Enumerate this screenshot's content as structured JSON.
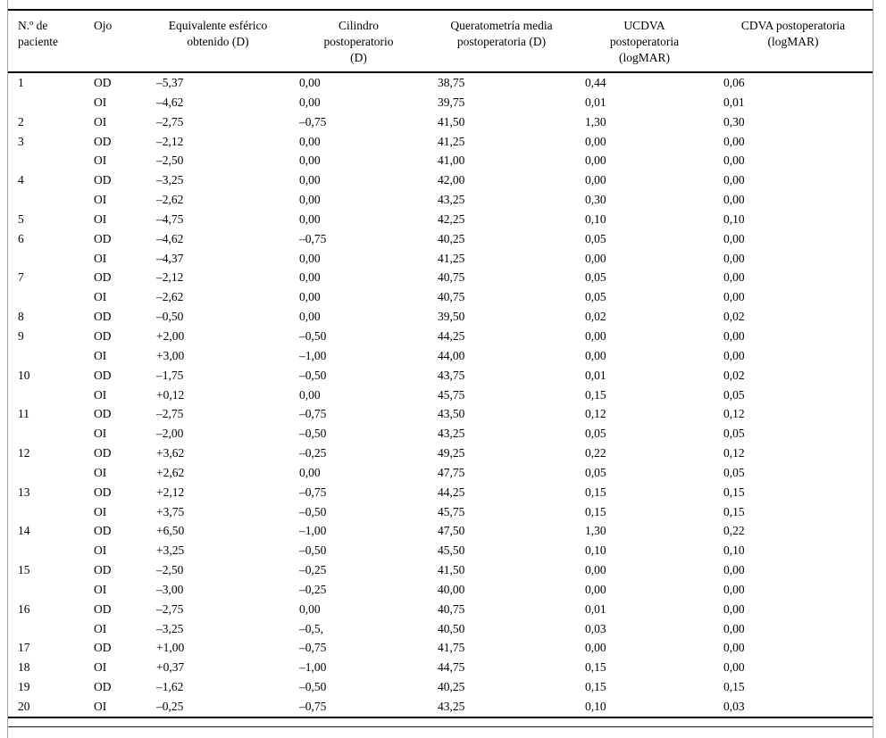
{
  "colors": {
    "rule": "#000000",
    "frame_border": "#a6a6a6",
    "background": "#ffffff",
    "text": "#000000"
  },
  "table": {
    "columns": [
      {
        "id": "patient",
        "label": "N.º de\npaciente"
      },
      {
        "id": "eye",
        "label": "Ojo"
      },
      {
        "id": "spherical-equivalent",
        "label": "Equivalente esférico\nobtenido (D)"
      },
      {
        "id": "cylinder",
        "label": "Cilindro\npostoperatorio\n(D)"
      },
      {
        "id": "keratometry",
        "label": "Queratometría media\npostoperatoria (D)"
      },
      {
        "id": "ucdva",
        "label": "UCDVA\npostoperatoria\n(logMAR)"
      },
      {
        "id": "cdva",
        "label": "CDVA postoperatoria\n(logMAR)"
      }
    ],
    "rows": [
      [
        "1",
        "OD",
        "–5,37",
        "0,00",
        "38,75",
        "0,44",
        "0,06"
      ],
      [
        "",
        "OI",
        "–4,62",
        "0,00",
        "39,75",
        "0,01",
        "0,01"
      ],
      [
        "2",
        "OI",
        "–2,75",
        "–0,75",
        "41,50",
        "1,30",
        "0,30"
      ],
      [
        "3",
        "OD",
        "–2,12",
        "0,00",
        "41,25",
        "0,00",
        "0,00"
      ],
      [
        "",
        "OI",
        "–2,50",
        "0,00",
        "41,00",
        "0,00",
        "0,00"
      ],
      [
        "4",
        "OD",
        "–3,25",
        "0,00",
        "42,00",
        "0,00",
        "0,00"
      ],
      [
        "",
        "OI",
        "–2,62",
        "0,00",
        "43,25",
        "0,30",
        "0,00"
      ],
      [
        "5",
        "OI",
        "–4,75",
        "0,00",
        "42,25",
        "0,10",
        "0,10"
      ],
      [
        "6",
        "OD",
        "–4,62",
        "–0,75",
        "40,25",
        "0,05",
        "0,00"
      ],
      [
        "",
        "OI",
        "–4,37",
        "0,00",
        "41,25",
        "0,00",
        "0,00"
      ],
      [
        "7",
        "OD",
        "–2,12",
        "0,00",
        "40,75",
        "0,05",
        "0,00"
      ],
      [
        "",
        "OI",
        "–2,62",
        "0,00",
        "40,75",
        "0,05",
        "0,00"
      ],
      [
        "8",
        "OD",
        "–0,50",
        "0,00",
        "39,50",
        "0,02",
        "0,02"
      ],
      [
        "9",
        "OD",
        "+2,00",
        "–0,50",
        "44,25",
        "0,00",
        "0,00"
      ],
      [
        "",
        "OI",
        "+3,00",
        "–1,00",
        "44,00",
        "0,00",
        "0,00"
      ],
      [
        "10",
        "OD",
        "–1,75",
        "–0,50",
        "43,75",
        "0,01",
        "0,02"
      ],
      [
        "",
        "OI",
        "+0,12",
        "0,00",
        "45,75",
        "0,15",
        "0,05"
      ],
      [
        "11",
        "OD",
        "–2,75",
        "–0,75",
        "43,50",
        "0,12",
        "0,12"
      ],
      [
        "",
        "OI",
        "–2,00",
        "–0,50",
        "43,25",
        "0,05",
        "0,05"
      ],
      [
        "12",
        "OD",
        "+3,62",
        "–0,25",
        "49,25",
        "0,22",
        "0,12"
      ],
      [
        "",
        "OI",
        "+2,62",
        "0,00",
        "47,75",
        "0,05",
        "0,05"
      ],
      [
        "13",
        "OD",
        "+2,12",
        "–0,75",
        "44,25",
        "0,15",
        "0,15"
      ],
      [
        "",
        "OI",
        "+3,75",
        "–0,50",
        "45,75",
        "0,15",
        "0,15"
      ],
      [
        "14",
        "OD",
        "+6,50",
        "–1,00",
        "47,50",
        "1,30",
        "0,22"
      ],
      [
        "",
        "OI",
        "+3,25",
        "–0,50",
        "45,50",
        "0,10",
        "0,10"
      ],
      [
        "15",
        "OD",
        "–2,50",
        "–0,25",
        "41,50",
        "0,00",
        "0,00"
      ],
      [
        "",
        "OI",
        "–3,00",
        "–0,25",
        "40,00",
        "0,00",
        "0,00"
      ],
      [
        "16",
        "OD",
        "–2,75",
        "0,00",
        "40,75",
        "0,01",
        "0,00"
      ],
      [
        "",
        "OI",
        "–3,25",
        "–0,5,",
        "40,50",
        "0,03",
        "0,00"
      ],
      [
        "17",
        "OD",
        "+1,00",
        "–0,75",
        "41,75",
        "0,00",
        "0,00"
      ],
      [
        "18",
        "OI",
        "+0,37",
        "–1,00",
        "44,75",
        "0,15",
        "0,00"
      ],
      [
        "19",
        "OD",
        "–1,62",
        "–0,50",
        "40,25",
        "0,15",
        "0,15"
      ],
      [
        "20",
        "OI",
        "–0,25",
        "–0,75",
        "43,25",
        "0,10",
        "0,03"
      ]
    ]
  }
}
